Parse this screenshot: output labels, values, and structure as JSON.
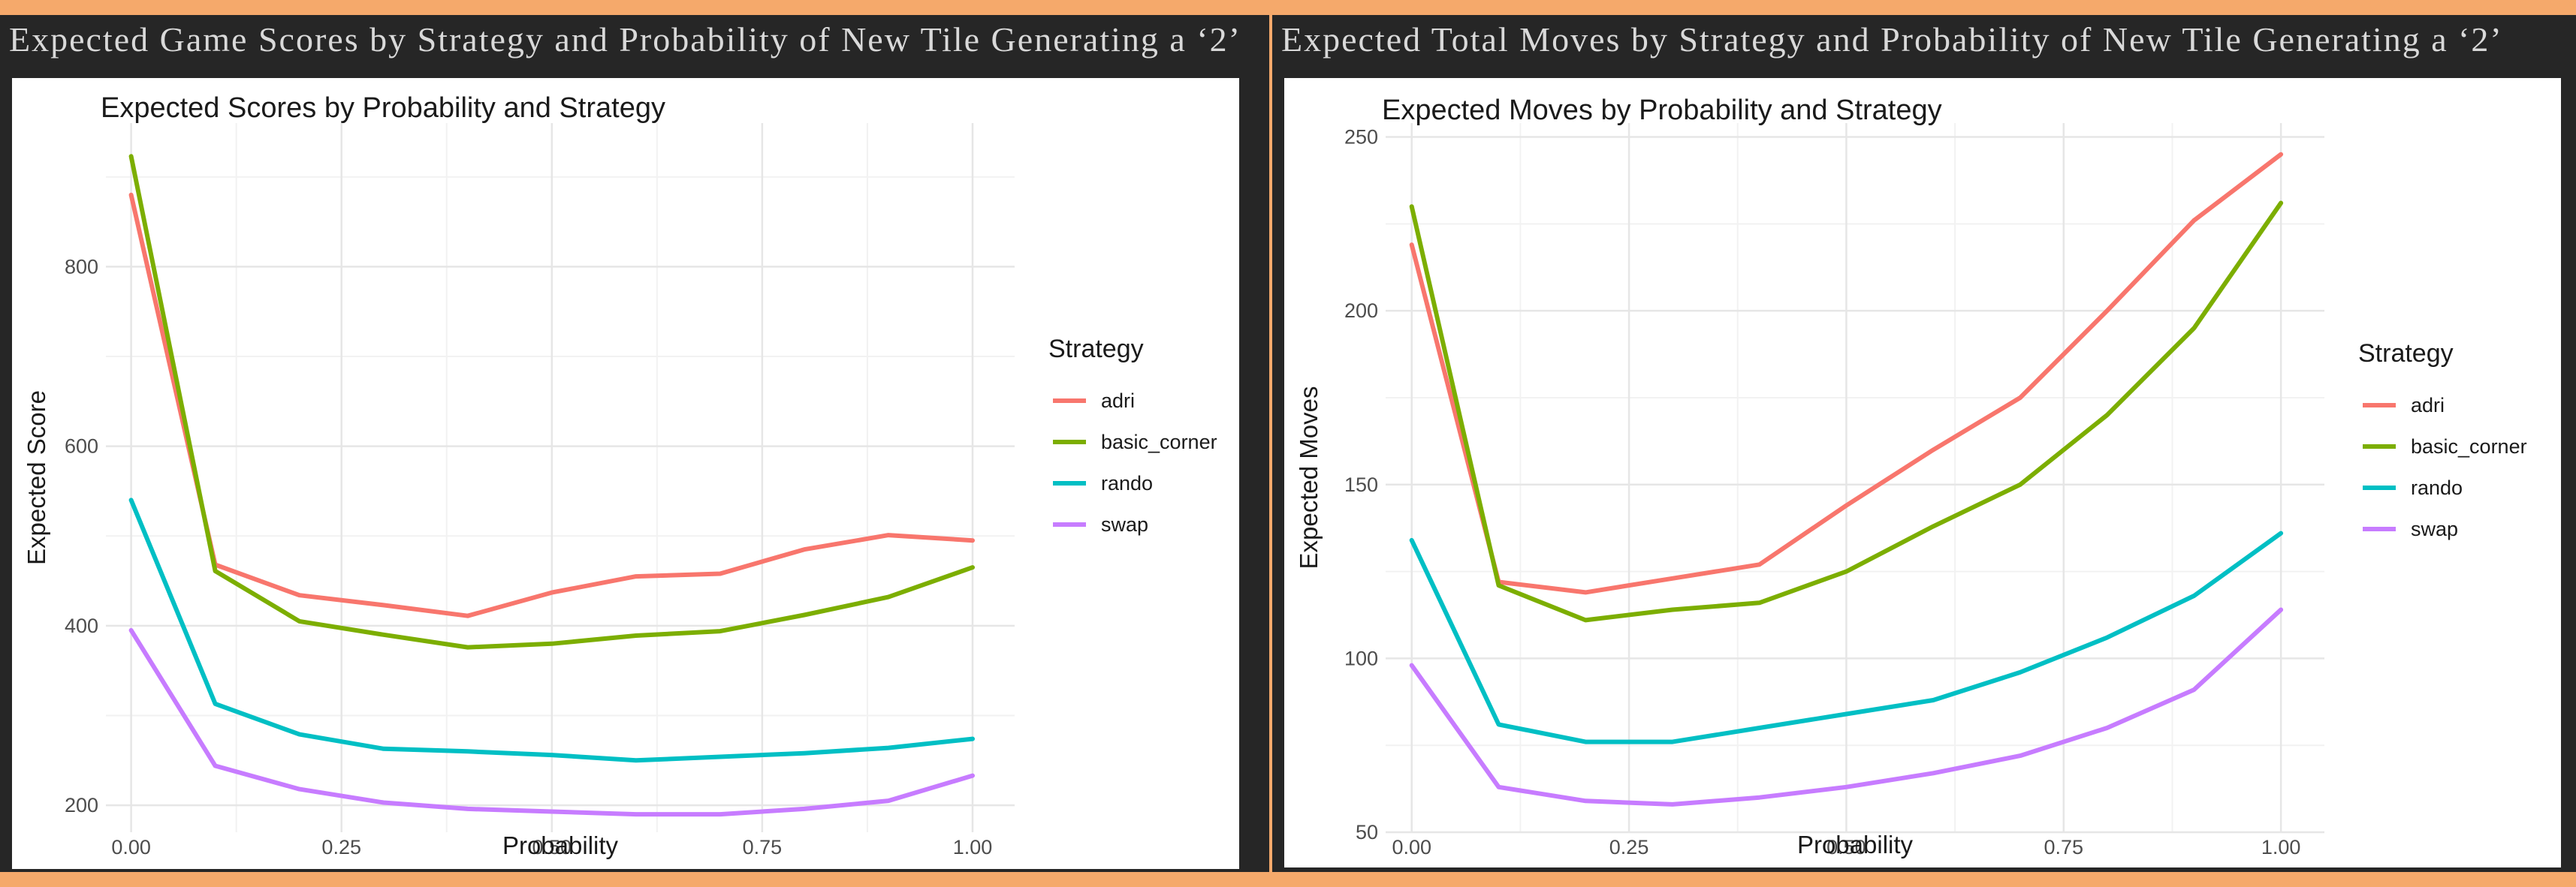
{
  "panels": [
    {
      "heading": "Expected Game Scores by Strategy and Probability of New Tile Generating a ‘2’"
    },
    {
      "heading": "Expected Total Moves by Strategy and Probability of New Tile Generating a ‘2’"
    }
  ],
  "chart_data": [
    {
      "type": "line",
      "title": "Expected Scores by Probability and Strategy",
      "xlabel": "Probability",
      "ylabel": "Expected Score",
      "xlim": [
        -0.03,
        1.05
      ],
      "ylim": [
        170,
        960
      ],
      "x_ticks": [
        0,
        0.25,
        0.5,
        0.75,
        1
      ],
      "x_tick_labels": [
        "0.00",
        "0.25",
        "0.50",
        "0.75",
        "1.00"
      ],
      "y_ticks": [
        200,
        400,
        600,
        800
      ],
      "y_tick_labels": [
        "200",
        "400",
        "600",
        "800"
      ],
      "grid": true,
      "legend_title": "Strategy",
      "legend_position": "right",
      "x": [
        0,
        0.1,
        0.2,
        0.3,
        0.4,
        0.5,
        0.6,
        0.7,
        0.8,
        0.9,
        1.0
      ],
      "series": [
        {
          "name": "adri",
          "color": "#f8766d",
          "values": [
            880,
            468,
            434,
            423,
            411,
            437,
            455,
            458,
            485,
            501,
            495
          ]
        },
        {
          "name": "basic_corner",
          "color": "#7cae00",
          "values": [
            923,
            461,
            405,
            390,
            376,
            380,
            389,
            394,
            412,
            432,
            465
          ]
        },
        {
          "name": "rando",
          "color": "#00bfc4",
          "values": [
            540,
            313,
            279,
            263,
            260,
            256,
            250,
            254,
            258,
            264,
            274
          ]
        },
        {
          "name": "swap",
          "color": "#c77cff",
          "values": [
            395,
            244,
            218,
            203,
            196,
            193,
            190,
            190,
            196,
            205,
            233
          ]
        }
      ]
    },
    {
      "type": "line",
      "title": "Expected Moves by Probability and Strategy",
      "xlabel": "Probability",
      "ylabel": "Expected Moves",
      "xlim": [
        -0.03,
        1.05
      ],
      "ylim": [
        50,
        254
      ],
      "x_ticks": [
        0,
        0.25,
        0.5,
        0.75,
        1
      ],
      "x_tick_labels": [
        "0.00",
        "0.25",
        "0.50",
        "0.75",
        "1.00"
      ],
      "y_ticks": [
        50,
        100,
        150,
        200,
        250
      ],
      "y_tick_labels": [
        "50",
        "100",
        "150",
        "200",
        "250"
      ],
      "grid": true,
      "legend_title": "Strategy",
      "legend_position": "right",
      "x": [
        0,
        0.1,
        0.2,
        0.3,
        0.4,
        0.5,
        0.6,
        0.7,
        0.8,
        0.9,
        1.0
      ],
      "series": [
        {
          "name": "adri",
          "color": "#f8766d",
          "values": [
            219,
            122,
            119,
            123,
            127,
            144,
            160,
            175,
            200,
            226,
            245
          ]
        },
        {
          "name": "basic_corner",
          "color": "#7cae00",
          "values": [
            230,
            121,
            111,
            114,
            116,
            125,
            138,
            150,
            170,
            195,
            231
          ]
        },
        {
          "name": "rando",
          "color": "#00bfc4",
          "values": [
            134,
            81,
            76,
            76,
            80,
            84,
            88,
            96,
            106,
            118,
            136
          ]
        },
        {
          "name": "swap",
          "color": "#c77cff",
          "values": [
            98,
            63,
            59,
            58,
            60,
            63,
            67,
            72,
            80,
            91,
            114
          ]
        }
      ]
    }
  ]
}
